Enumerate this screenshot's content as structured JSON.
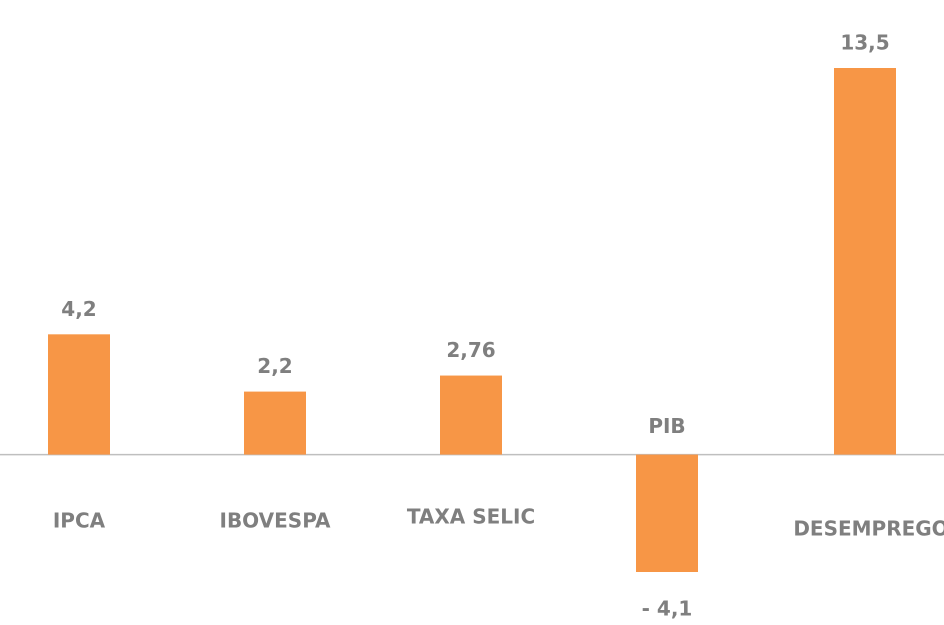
{
  "chart_data": {
    "type": "bar",
    "categories": [
      "IPCA",
      "IBOVESPA",
      "TAXA SELIC",
      "PIB",
      "DESEMPREGO"
    ],
    "values": [
      4.2,
      2.2,
      2.76,
      -4.1,
      13.5
    ],
    "value_labels": [
      "4,2",
      "2,2",
      "2,76",
      "- 4,1",
      "13,5"
    ],
    "color": "#f79646"
  }
}
